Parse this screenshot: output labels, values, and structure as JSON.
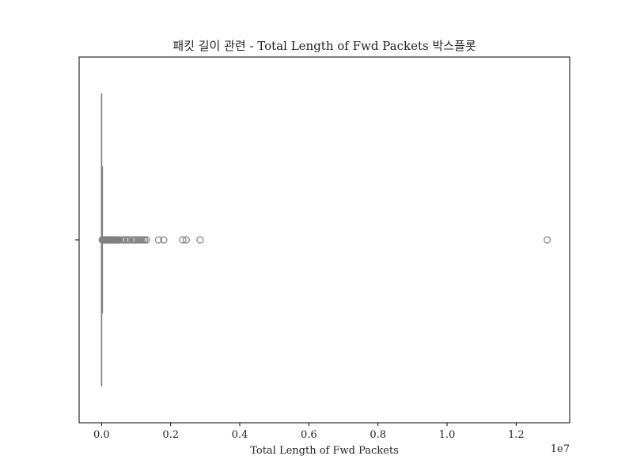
{
  "chart_data": {
    "type": "boxplot",
    "orientation": "horizontal",
    "title": "패킷 길이 관련 - Total Length of Fwd Packets 박스플롯",
    "xlabel": "Total Length of Fwd Packets",
    "ylabel": "",
    "scale_offset_label": "1e7",
    "scale_factor": 10000000,
    "xlim": [
      -650000,
      13550000
    ],
    "xticks": [
      0,
      2000000,
      4000000,
      6000000,
      8000000,
      10000000,
      12000000
    ],
    "xtick_labels": [
      "0.0",
      "0.2",
      "0.4",
      "0.6",
      "0.8",
      "1.0",
      "1.2"
    ],
    "grid": false,
    "legend": "none",
    "colors": {
      "box": "#808080",
      "frame": "#000000",
      "background": "#ffffff"
    },
    "box": {
      "min": 0,
      "q1": 0,
      "median": 0,
      "q3": 50,
      "whisker_high": 130
    },
    "outliers": [
      20000,
      40000,
      60000,
      80000,
      100000,
      120000,
      140000,
      160000,
      180000,
      200000,
      220000,
      240000,
      260000,
      280000,
      300000,
      320000,
      340000,
      360000,
      380000,
      400000,
      420000,
      440000,
      460000,
      480000,
      500000,
      600000,
      650000,
      700000,
      750000,
      800000,
      900000,
      950000,
      1000000,
      1050000,
      1100000,
      1150000,
      1200000,
      1250000,
      1300000,
      1650000,
      1800000,
      2350000,
      2450000,
      2850000,
      12900000
    ]
  }
}
